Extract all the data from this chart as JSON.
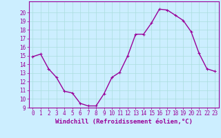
{
  "x": [
    0,
    1,
    2,
    3,
    4,
    5,
    6,
    7,
    8,
    9,
    10,
    11,
    12,
    13,
    14,
    15,
    16,
    17,
    18,
    19,
    20,
    21,
    22,
    23
  ],
  "y": [
    14.9,
    15.2,
    13.5,
    12.5,
    10.9,
    10.7,
    9.5,
    9.2,
    9.2,
    10.6,
    12.5,
    13.1,
    15.0,
    17.5,
    17.5,
    18.8,
    20.4,
    20.3,
    19.7,
    19.1,
    17.8,
    15.3,
    13.5,
    13.2
  ],
  "line_color": "#990099",
  "marker": "+",
  "marker_size": 3,
  "marker_edge_width": 0.8,
  "bg_color": "#cceeff",
  "grid_color": "#aadddd",
  "xlabel": "Windchill (Refroidissement éolien,°C)",
  "ylim_min": 9,
  "ylim_max": 21,
  "xlim_min": -0.5,
  "xlim_max": 23.5,
  "yticks": [
    9,
    10,
    11,
    12,
    13,
    14,
    15,
    16,
    17,
    18,
    19,
    20
  ],
  "xticks": [
    0,
    1,
    2,
    3,
    4,
    5,
    6,
    7,
    8,
    9,
    10,
    11,
    12,
    13,
    14,
    15,
    16,
    17,
    18,
    19,
    20,
    21,
    22,
    23
  ],
  "xlabel_fontsize": 6.5,
  "tick_fontsize": 5.5,
  "line_width": 1.0,
  "spine_color": "#990099"
}
